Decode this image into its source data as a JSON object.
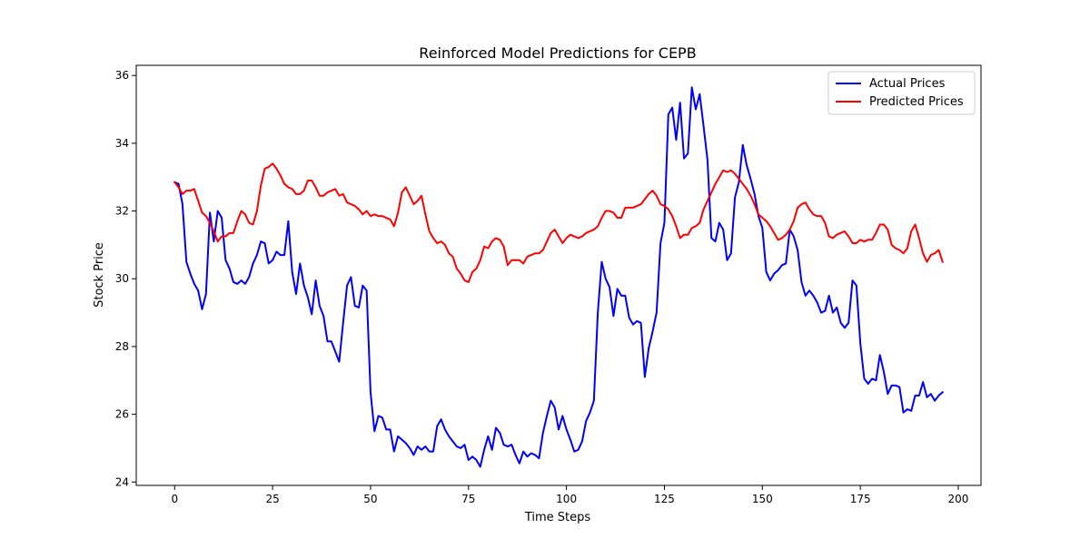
{
  "chart_data": {
    "type": "line",
    "title": "Reinforced Model Predictions for CEPB",
    "xlabel": "Time Steps",
    "ylabel": "Stock Price",
    "xlim": [
      -9.8,
      205.8
    ],
    "ylim": [
      23.9,
      36.3
    ],
    "xticks": [
      0,
      25,
      50,
      75,
      100,
      125,
      150,
      175,
      200
    ],
    "yticks": [
      24,
      26,
      28,
      30,
      32,
      34,
      36
    ],
    "grid": false,
    "legend_position": "top-right",
    "series": [
      {
        "name": "Actual Prices",
        "color": "#0000ff",
        "x": [
          0,
          1,
          2,
          3,
          4,
          5,
          6,
          7,
          8,
          9,
          10,
          11,
          12,
          13,
          14,
          15,
          16,
          17,
          18,
          19,
          20,
          21,
          22,
          23,
          24,
          25,
          26,
          27,
          28,
          29,
          30,
          31,
          32,
          33,
          34,
          35,
          36,
          37,
          38,
          39,
          40,
          41,
          42,
          43,
          44,
          45,
          46,
          47,
          48,
          49,
          50,
          51,
          52,
          53,
          54,
          55,
          56,
          57,
          58,
          59,
          60,
          61,
          62,
          63,
          64,
          65,
          66,
          67,
          68,
          69,
          70,
          71,
          72,
          73,
          74,
          75,
          76,
          77,
          78,
          79,
          80,
          81,
          82,
          83,
          84,
          85,
          86,
          87,
          88,
          89,
          90,
          91,
          92,
          93,
          94,
          95,
          96,
          97,
          98,
          99,
          100,
          101,
          102,
          103,
          104,
          105,
          106,
          107,
          108,
          109,
          110,
          111,
          112,
          113,
          114,
          115,
          116,
          117,
          118,
          119,
          120,
          121,
          122,
          123,
          124,
          125,
          126,
          127,
          128,
          129,
          130,
          131,
          132,
          133,
          134,
          135,
          136,
          137,
          138,
          139,
          140,
          141,
          142,
          143,
          144,
          145,
          146,
          147,
          148,
          149,
          150,
          151,
          152,
          153,
          154,
          155,
          156,
          157,
          158,
          159,
          160,
          161,
          162,
          163,
          164,
          165,
          166,
          167,
          168,
          169,
          170,
          171,
          172,
          173,
          174,
          175,
          176,
          177,
          178,
          179,
          180,
          181,
          182,
          183,
          184,
          185,
          186,
          187,
          188,
          189,
          190,
          191,
          192,
          193,
          194,
          195,
          196
        ],
        "y": [
          32.85,
          32.8,
          32.2,
          30.5,
          30.15,
          29.85,
          29.65,
          29.1,
          29.55,
          31.95,
          31.1,
          32.0,
          31.8,
          30.55,
          30.3,
          29.9,
          29.85,
          29.95,
          29.85,
          30.05,
          30.45,
          30.7,
          31.1,
          31.05,
          30.45,
          30.55,
          30.8,
          30.7,
          30.7,
          31.7,
          30.2,
          29.55,
          30.45,
          29.8,
          29.45,
          28.95,
          29.95,
          29.2,
          28.9,
          28.15,
          28.15,
          27.85,
          27.55,
          28.7,
          29.8,
          30.05,
          29.2,
          29.15,
          29.8,
          29.65,
          26.65,
          25.5,
          25.95,
          25.9,
          25.55,
          25.55,
          24.9,
          25.35,
          25.25,
          25.15,
          25.0,
          24.8,
          25.05,
          24.95,
          25.05,
          24.9,
          24.9,
          25.65,
          25.85,
          25.55,
          25.35,
          25.2,
          25.05,
          25.0,
          25.1,
          24.65,
          24.75,
          24.65,
          24.45,
          24.95,
          25.35,
          24.95,
          25.6,
          25.45,
          25.1,
          25.05,
          25.1,
          24.8,
          24.55,
          24.9,
          24.75,
          24.85,
          24.8,
          24.7,
          25.45,
          25.95,
          26.4,
          26.2,
          25.55,
          25.95,
          25.55,
          25.25,
          24.9,
          24.95,
          25.2,
          25.8,
          26.05,
          26.4,
          29.0,
          30.5,
          30.0,
          29.75,
          28.9,
          29.7,
          29.5,
          29.5,
          28.85,
          28.65,
          28.75,
          28.7,
          27.1,
          27.95,
          28.45,
          29.0,
          31.05,
          31.65,
          34.85,
          35.05,
          34.1,
          35.2,
          33.55,
          33.7,
          35.65,
          35.0,
          35.45,
          34.5,
          33.5,
          31.2,
          31.1,
          31.65,
          31.45,
          30.55,
          30.75,
          32.4,
          32.85,
          33.95,
          33.35,
          32.95,
          32.5,
          31.85,
          31.5,
          30.2,
          29.95,
          30.15,
          30.25,
          30.4,
          30.45,
          31.45,
          31.25,
          30.85,
          29.9,
          29.5,
          29.65,
          29.5,
          29.3,
          29.0,
          29.05,
          29.5,
          29.0,
          29.15,
          28.7,
          28.55,
          28.7,
          29.95,
          29.8,
          28.1,
          27.05,
          26.9,
          27.05,
          27.0,
          27.75,
          27.25,
          26.6,
          26.85,
          26.85,
          26.8,
          26.05,
          26.15,
          26.1,
          26.55,
          26.55,
          26.95,
          26.5,
          26.6,
          26.4,
          26.55,
          26.65
        ]
      },
      {
        "name": "Predicted Prices",
        "color": "#ff0000",
        "x": [
          0,
          1,
          2,
          3,
          4,
          5,
          6,
          7,
          8,
          9,
          10,
          11,
          12,
          13,
          14,
          15,
          16,
          17,
          18,
          19,
          20,
          21,
          22,
          23,
          24,
          25,
          26,
          27,
          28,
          29,
          30,
          31,
          32,
          33,
          34,
          35,
          36,
          37,
          38,
          39,
          40,
          41,
          42,
          43,
          44,
          45,
          46,
          47,
          48,
          49,
          50,
          51,
          52,
          53,
          54,
          55,
          56,
          57,
          58,
          59,
          60,
          61,
          62,
          63,
          64,
          65,
          66,
          67,
          68,
          69,
          70,
          71,
          72,
          73,
          74,
          75,
          76,
          77,
          78,
          79,
          80,
          81,
          82,
          83,
          84,
          85,
          86,
          87,
          88,
          89,
          90,
          91,
          92,
          93,
          94,
          95,
          96,
          97,
          98,
          99,
          100,
          101,
          102,
          103,
          104,
          105,
          106,
          107,
          108,
          109,
          110,
          111,
          112,
          113,
          114,
          115,
          116,
          117,
          118,
          119,
          120,
          121,
          122,
          123,
          124,
          125,
          126,
          127,
          128,
          129,
          130,
          131,
          132,
          133,
          134,
          135,
          136,
          137,
          138,
          139,
          140,
          141,
          142,
          143,
          144,
          145,
          146,
          147,
          148,
          149,
          150,
          151,
          152,
          153,
          154,
          155,
          156,
          157,
          158,
          159,
          160,
          161,
          162,
          163,
          164,
          165,
          166,
          167,
          168,
          169,
          170,
          171,
          172,
          173,
          174,
          175,
          176,
          177,
          178,
          179,
          180,
          181,
          182,
          183,
          184,
          185,
          186,
          187,
          188,
          189,
          190,
          191,
          192,
          193,
          194,
          195,
          196
        ],
        "y": [
          32.85,
          32.7,
          32.5,
          32.6,
          32.6,
          32.65,
          32.3,
          31.95,
          31.85,
          31.65,
          31.4,
          31.1,
          31.25,
          31.25,
          31.35,
          31.35,
          31.7,
          32.0,
          31.9,
          31.65,
          31.6,
          32.0,
          32.75,
          33.25,
          33.3,
          33.4,
          33.25,
          33.05,
          32.8,
          32.7,
          32.65,
          32.5,
          32.5,
          32.6,
          32.9,
          32.9,
          32.7,
          32.45,
          32.45,
          32.55,
          32.6,
          32.65,
          32.45,
          32.5,
          32.25,
          32.2,
          32.15,
          32.05,
          31.9,
          32.0,
          31.85,
          31.9,
          31.85,
          31.85,
          31.8,
          31.75,
          31.55,
          31.95,
          32.55,
          32.7,
          32.45,
          32.2,
          32.3,
          32.45,
          31.9,
          31.4,
          31.2,
          31.05,
          31.1,
          31.0,
          30.75,
          30.65,
          30.3,
          30.15,
          29.95,
          29.9,
          30.2,
          30.3,
          30.55,
          30.95,
          30.9,
          31.1,
          31.2,
          31.15,
          30.95,
          30.4,
          30.55,
          30.55,
          30.55,
          30.45,
          30.65,
          30.7,
          30.75,
          30.75,
          30.85,
          31.1,
          31.35,
          31.45,
          31.25,
          31.05,
          31.2,
          31.3,
          31.25,
          31.2,
          31.25,
          31.35,
          31.4,
          31.45,
          31.55,
          31.8,
          32.0,
          32.0,
          31.95,
          31.8,
          31.8,
          32.1,
          32.1,
          32.1,
          32.15,
          32.2,
          32.35,
          32.5,
          32.6,
          32.45,
          32.2,
          32.15,
          32.05,
          31.85,
          31.55,
          31.2,
          31.3,
          31.3,
          31.5,
          31.55,
          31.65,
          32.05,
          32.3,
          32.55,
          32.8,
          33.0,
          33.2,
          33.15,
          33.2,
          33.1,
          32.95,
          32.8,
          32.65,
          32.45,
          32.2,
          31.9,
          31.8,
          31.7,
          31.55,
          31.35,
          31.15,
          31.2,
          31.3,
          31.45,
          31.7,
          32.1,
          32.2,
          32.25,
          32.05,
          31.9,
          31.85,
          31.85,
          31.65,
          31.25,
          31.2,
          31.3,
          31.35,
          31.4,
          31.25,
          31.05,
          31.05,
          31.15,
          31.1,
          31.15,
          31.15,
          31.35,
          31.6,
          31.6,
          31.45,
          31.0,
          30.9,
          30.85,
          30.75,
          30.9,
          31.4,
          31.6,
          31.2,
          30.75,
          30.5,
          30.7,
          30.75,
          30.85,
          30.5
        ]
      }
    ]
  }
}
